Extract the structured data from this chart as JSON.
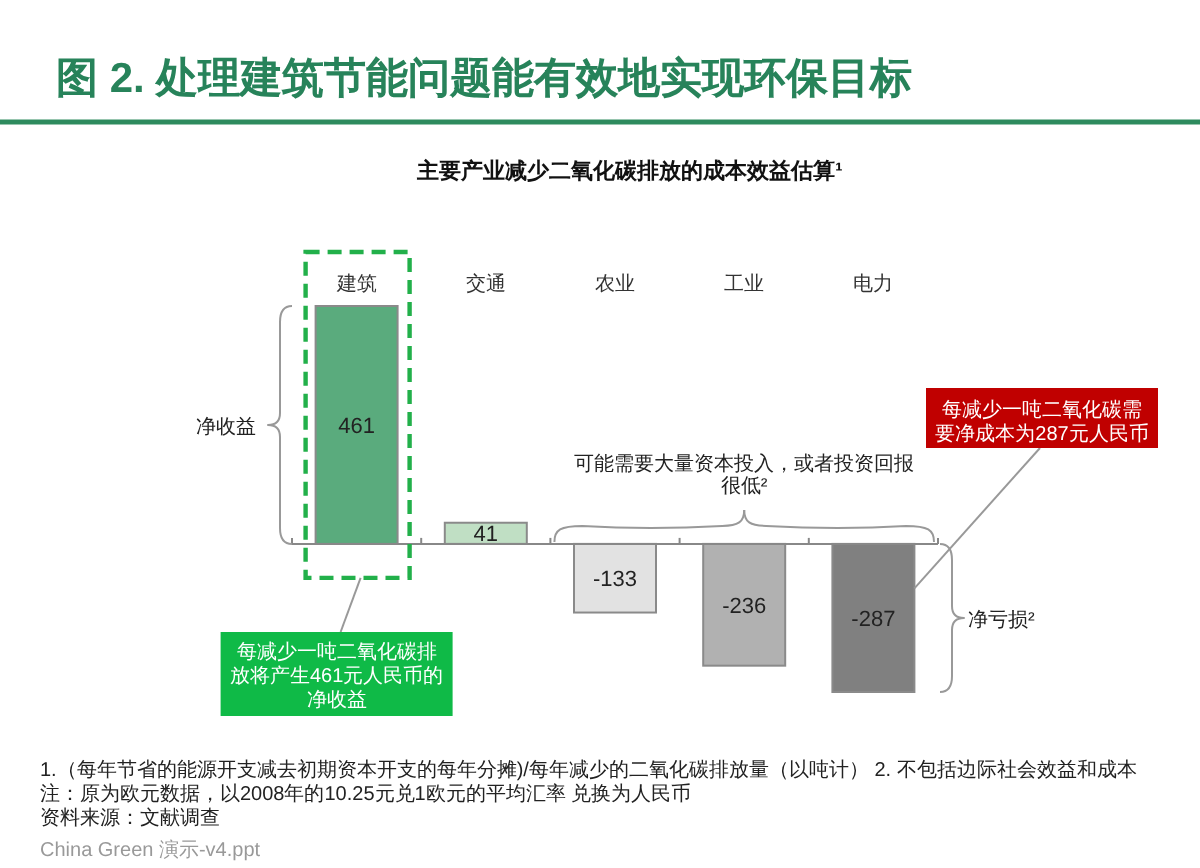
{
  "chart_data": {
    "type": "bar",
    "title": "图 2. 处理建筑节能问题能有效地实现环保目标",
    "subtitle": "主要产业减少二氧化碳排放的成本效益估算¹",
    "categories": [
      "建筑",
      "交通",
      "农业",
      "工业",
      "电力"
    ],
    "values": [
      461,
      41,
      -133,
      -236,
      -287
    ],
    "colors": [
      "#5aab7d",
      "#c0dfc4",
      "#e2e2e2",
      "#b1b1b1",
      "#808080"
    ],
    "data_labels": true,
    "annotations": [
      "净收益",
      "可能需要大量资本投入，或者投资回报很低²",
      "净亏损²",
      "每减少一吨二氧化碳排放将产生461元人民币的净收益",
      "每减少一吨二氧化碳需要净成本为287元人民币",
      "1.（每年节省的能源开支减去初期资本开支的每年分摊)/每年减少的二氧化碳排放量（以吨计）   2. 不包括边际社会效益和成本",
      "注：原为欧元数据，以2008年的10.25元兑1欧元的平均汇率 兑换为人民币",
      "资料来源：文献调查",
      "China Green 演示-v4.ppt"
    ]
  }
}
